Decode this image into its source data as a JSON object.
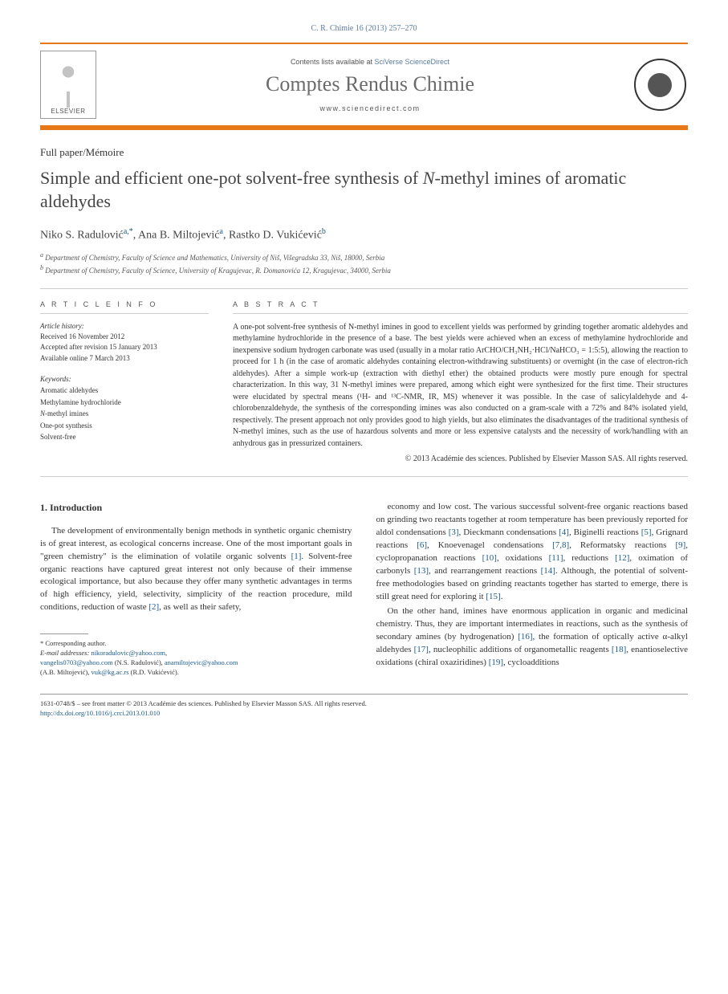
{
  "header": {
    "citation": "C. R. Chimie 16 (2013) 257–270",
    "contents_prefix": "Contents lists available at ",
    "contents_link": "SciVerse ScienceDirect",
    "journal_name": "Comptes Rendus Chimie",
    "journal_url": "www.sciencedirect.com",
    "elsevier_label": "ELSEVIER"
  },
  "article": {
    "type": "Full paper/Mémoire",
    "title_pre": "Simple and efficient one-pot solvent-free synthesis of ",
    "title_ital": "N",
    "title_post": "-methyl imines of aromatic aldehydes",
    "authors_html": "Niko S. Radulović",
    "author1_sup": "a,*",
    "author2": ", Ana B. Miltojević",
    "author2_sup": "a",
    "author3": ", Rastko D. Vukićević",
    "author3_sup": "b",
    "affil_a": "Department of Chemistry, Faculty of Science and Mathematics, University of Niš, Višegradska 33, Niš, 18000, Serbia",
    "affil_b": "Department of Chemistry, Faculty of Science, University of Kragujevac, R. Domanovića 12, Kragujevac, 34000, Serbia"
  },
  "info": {
    "heading": "A R T I C L E   I N F O",
    "history_label": "Article history:",
    "history_text": "Received 16 November 2012\nAccepted after revision 15 January 2013\nAvailable online 7 March 2013",
    "keywords_label": "Keywords:",
    "keywords": [
      "Aromatic aldehydes",
      "Methylamine hydrochloride",
      "N-methyl imines",
      "One-pot synthesis",
      "Solvent-free"
    ]
  },
  "abstract": {
    "heading": "A B S T R A C T",
    "text": "A one-pot solvent-free synthesis of N-methyl imines in good to excellent yields was performed by grinding together aromatic aldehydes and methylamine hydrochloride in the presence of a base. The best yields were achieved when an excess of methylamine hydrochloride and inexpensive sodium hydrogen carbonate was used (usually in a molar ratio ArCHO/CH₃NH₂·HCl/NaHCO₃ = 1:5:5), allowing the reaction to proceed for 1 h (in the case of aromatic aldehydes containing electron-withdrawing substituents) or overnight (in the case of electron-rich aldehydes). After a simple work-up (extraction with diethyl ether) the obtained products were mostly pure enough for spectral characterization. In this way, 31 N-methyl imines were prepared, among which eight were synthesized for the first time. Their structures were elucidated by spectral means (¹H- and ¹³C-NMR, IR, MS) whenever it was possible. In the case of salicylaldehyde and 4-chlorobenzaldehyde, the synthesis of the corresponding imines was also conducted on a gram-scale with a 72% and 84% isolated yield, respectively. The present approach not only provides good to high yields, but also eliminates the disadvantages of the traditional synthesis of N-methyl imines, such as the use of hazardous solvents and more or less expensive catalysts and the necessity of work/handling with an anhydrous gas in pressurized containers.",
    "copyright": "© 2013 Académie des sciences. Published by Elsevier Masson SAS. All rights reserved."
  },
  "body": {
    "section_heading": "1. Introduction",
    "col1_p1": "The development of environmentally benign methods in synthetic organic chemistry is of great interest, as ecological concerns increase. One of the most important goals in \"green chemistry\" is the elimination of volatile organic solvents [1]. Solvent-free organic reactions have captured great interest not only because of their immense ecological importance, but also because they offer many synthetic advantages in terms of high efficiency, yield, selectivity, simplicity of the reaction procedure, mild conditions, reduction of waste [2], as well as their safety,",
    "col2_p1": "economy and low cost. The various successful solvent-free organic reactions based on grinding two reactants together at room temperature has been previously reported for aldol condensations [3], Dieckmann condensations [4], Biginelli reactions [5], Grignard reactions [6], Knoevenagel condensations [7,8], Reformatsky reactions [9], cyclopropanation reactions [10], oxidations [11], reductions [12], oximation of carbonyls [13], and rearrangement reactions [14]. Although, the potential of solvent-free methodologies based on grinding reactants together has started to emerge, there is still great need for exploring it [15].",
    "col2_p2": "On the other hand, imines have enormous application in organic and medicinal chemistry. Thus, they are important intermediates in reactions, such as the synthesis of secondary amines (by hydrogenation) [16], the formation of optically active α-alkyl aldehydes [17], nucleophilic additions of organometallic reagents [18], enantioselective oxidations (chiral oxaziridines) [19], cycloadditions"
  },
  "footnote": {
    "corresponding": "* Corresponding author.",
    "email_label": "E-mail addresses: ",
    "email1": "nikoradulovic@yahoo.com",
    "email2": "vangelis0703@yahoo.com",
    "name1": " (N.S. Radulović), ",
    "email3": "anamiltojevic@yahoo.com",
    "name2": "(A.B. Miltojević), ",
    "email4": "vuk@kg.ac.rs",
    "name3": " (R.D. Vukićević)."
  },
  "bottom": {
    "issn_line": "1631-0748/$ – see front matter © 2013 Académie des sciences. Published by Elsevier Masson SAS. All rights reserved.",
    "doi": "http://dx.doi.org/10.1016/j.crci.2013.01.010"
  },
  "colors": {
    "orange": "#e67817",
    "link": "#1a5a8a",
    "header_link": "#5b7a9c",
    "text": "#333333",
    "heading_gray": "#6b6b6b"
  }
}
